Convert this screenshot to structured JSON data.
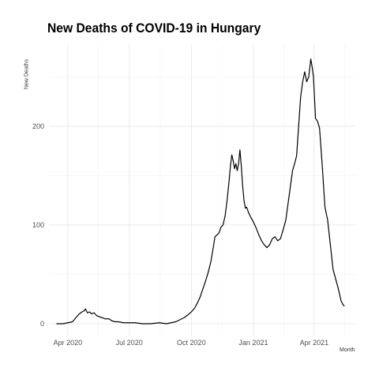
{
  "chart_data": {
    "type": "line",
    "title": "New Deaths of COVID-19 in Hungary",
    "xlabel": "Month",
    "ylabel": "New Deaths",
    "x_ticks": [
      "Apr 2020",
      "Jul 2020",
      "Oct 2020",
      "Jan 2021",
      "Apr 2021"
    ],
    "x_tick_dates": [
      "2020-04-01",
      "2020-07-01",
      "2020-10-01",
      "2021-01-01",
      "2021-04-01"
    ],
    "y_ticks": [
      0,
      100,
      200
    ],
    "xlim": [
      "2020-03-04",
      "2021-06-01"
    ],
    "ylim": [
      -12,
      283
    ],
    "grid": true,
    "series": [
      {
        "color": "#000000",
        "points": [
          [
            "2020-03-15",
            0
          ],
          [
            "2020-03-25",
            0
          ],
          [
            "2020-04-01",
            1
          ],
          [
            "2020-04-08",
            2
          ],
          [
            "2020-04-14",
            7
          ],
          [
            "2020-04-18",
            10
          ],
          [
            "2020-04-22",
            12
          ],
          [
            "2020-04-25",
            13
          ],
          [
            "2020-04-27",
            15
          ],
          [
            "2020-04-30",
            11
          ],
          [
            "2020-05-03",
            12
          ],
          [
            "2020-05-06",
            10
          ],
          [
            "2020-05-10",
            11
          ],
          [
            "2020-05-14",
            8
          ],
          [
            "2020-05-18",
            7
          ],
          [
            "2020-05-22",
            6
          ],
          [
            "2020-05-26",
            5
          ],
          [
            "2020-06-01",
            5
          ],
          [
            "2020-06-05",
            3
          ],
          [
            "2020-06-10",
            2
          ],
          [
            "2020-06-15",
            2
          ],
          [
            "2020-06-22",
            1
          ],
          [
            "2020-06-30",
            1
          ],
          [
            "2020-07-10",
            1
          ],
          [
            "2020-07-20",
            0
          ],
          [
            "2020-08-01",
            0
          ],
          [
            "2020-08-15",
            1
          ],
          [
            "2020-08-25",
            0
          ],
          [
            "2020-09-01",
            1
          ],
          [
            "2020-09-08",
            2
          ],
          [
            "2020-09-14",
            4
          ],
          [
            "2020-09-20",
            6
          ],
          [
            "2020-09-26",
            9
          ],
          [
            "2020-10-01",
            12
          ],
          [
            "2020-10-06",
            16
          ],
          [
            "2020-10-10",
            21
          ],
          [
            "2020-10-14",
            27
          ],
          [
            "2020-10-18",
            35
          ],
          [
            "2020-10-22",
            43
          ],
          [
            "2020-10-26",
            52
          ],
          [
            "2020-10-30",
            63
          ],
          [
            "2020-11-02",
            75
          ],
          [
            "2020-11-05",
            88
          ],
          [
            "2020-11-08",
            90
          ],
          [
            "2020-11-11",
            92
          ],
          [
            "2020-11-14",
            98
          ],
          [
            "2020-11-17",
            100
          ],
          [
            "2020-11-20",
            109
          ],
          [
            "2020-11-23",
            125
          ],
          [
            "2020-11-26",
            145
          ],
          [
            "2020-11-28",
            160
          ],
          [
            "2020-11-30",
            171
          ],
          [
            "2020-12-02",
            165
          ],
          [
            "2020-12-04",
            157
          ],
          [
            "2020-12-06",
            162
          ],
          [
            "2020-12-08",
            155
          ],
          [
            "2020-12-10",
            162
          ],
          [
            "2020-12-12",
            176
          ],
          [
            "2020-12-14",
            160
          ],
          [
            "2020-12-16",
            140
          ],
          [
            "2020-12-18",
            125
          ],
          [
            "2020-12-20",
            117
          ],
          [
            "2020-12-22",
            118
          ],
          [
            "2020-12-25",
            112
          ],
          [
            "2020-12-28",
            108
          ],
          [
            "2021-01-01",
            103
          ],
          [
            "2021-01-05",
            97
          ],
          [
            "2021-01-09",
            90
          ],
          [
            "2021-01-13",
            84
          ],
          [
            "2021-01-17",
            80
          ],
          [
            "2021-01-21",
            77
          ],
          [
            "2021-01-25",
            80
          ],
          [
            "2021-01-29",
            86
          ],
          [
            "2021-02-02",
            88
          ],
          [
            "2021-02-06",
            84
          ],
          [
            "2021-02-10",
            86
          ],
          [
            "2021-02-14",
            95
          ],
          [
            "2021-02-18",
            105
          ],
          [
            "2021-02-22",
            125
          ],
          [
            "2021-02-25",
            140
          ],
          [
            "2021-02-28",
            155
          ],
          [
            "2021-03-03",
            162
          ],
          [
            "2021-03-06",
            170
          ],
          [
            "2021-03-09",
            200
          ],
          [
            "2021-03-12",
            230
          ],
          [
            "2021-03-15",
            245
          ],
          [
            "2021-03-18",
            255
          ],
          [
            "2021-03-21",
            245
          ],
          [
            "2021-03-24",
            250
          ],
          [
            "2021-03-27",
            268
          ],
          [
            "2021-03-29",
            260
          ],
          [
            "2021-03-31",
            250
          ],
          [
            "2021-04-03",
            208
          ],
          [
            "2021-04-06",
            205
          ],
          [
            "2021-04-09",
            198
          ],
          [
            "2021-04-13",
            160
          ],
          [
            "2021-04-17",
            118
          ],
          [
            "2021-04-21",
            105
          ],
          [
            "2021-04-25",
            80
          ],
          [
            "2021-04-29",
            55
          ],
          [
            "2021-05-03",
            45
          ],
          [
            "2021-05-07",
            35
          ],
          [
            "2021-05-11",
            23
          ],
          [
            "2021-05-14",
            19
          ],
          [
            "2021-05-16",
            18
          ]
        ]
      }
    ]
  }
}
